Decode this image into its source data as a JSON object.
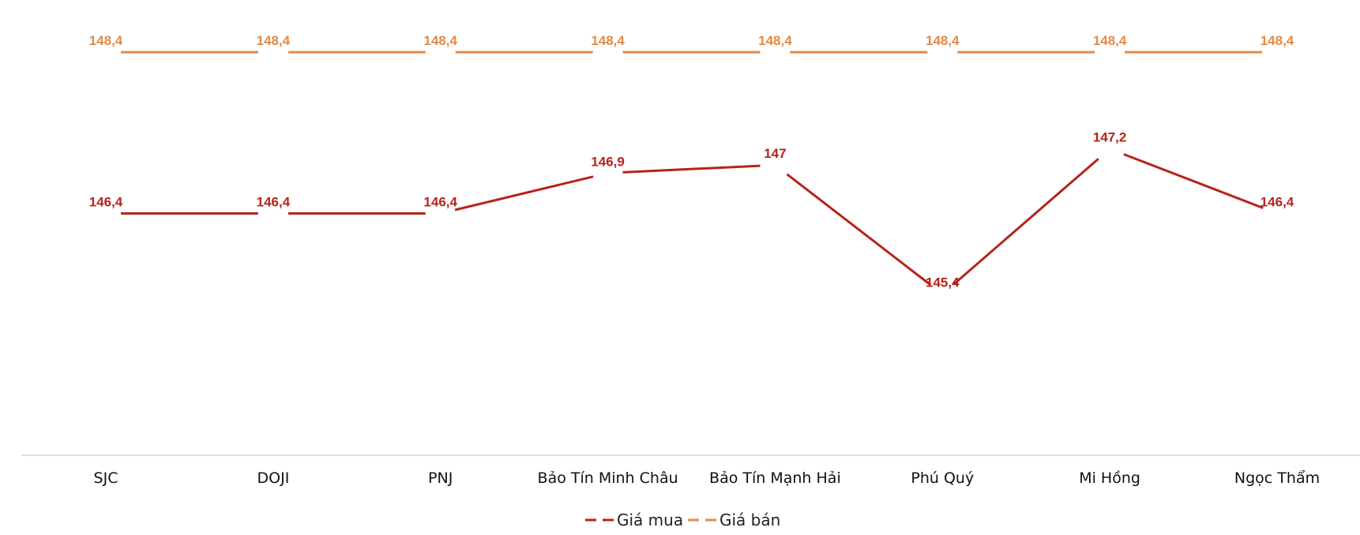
{
  "chart_data": {
    "type": "line",
    "title": "",
    "xlabel": "",
    "ylabel": "",
    "categories": [
      "SJC",
      "DOJI",
      "PNJ",
      "Bảo Tín Minh Châu",
      "Bảo Tín Mạnh Hải",
      "Phú Quý",
      "Mi Hồng",
      "Ngọc Thẩm"
    ],
    "series": [
      {
        "name": "Giá mua",
        "color": "#B5241B",
        "values": [
          146.4,
          146.4,
          146.4,
          146.9,
          147.0,
          145.4,
          147.2,
          146.4
        ],
        "labels": [
          "146,4",
          "146,4",
          "146,4",
          "146,9",
          "147",
          "145,4",
          "147,2",
          "146,4"
        ]
      },
      {
        "name": "Giá bán",
        "color": "#E38A45",
        "values": [
          148.4,
          148.4,
          148.4,
          148.4,
          148.4,
          148.4,
          148.4,
          148.4
        ],
        "labels": [
          "148,4",
          "148,4",
          "148,4",
          "148,4",
          "148,4",
          "148,4",
          "148,4",
          "148,4"
        ]
      }
    ],
    "ylim": [
      143.4,
      148.9
    ],
    "grid": false,
    "legend": "bottom"
  }
}
